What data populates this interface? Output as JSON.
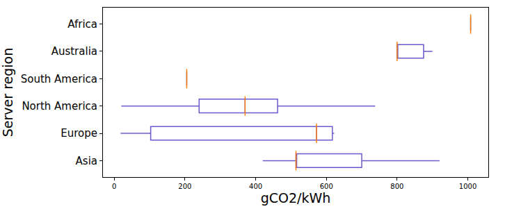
{
  "chart_data": {
    "type": "box",
    "orientation": "horizontal",
    "x_label": "gCO2/kWh",
    "y_label": "Server region",
    "categories": [
      "Asia",
      "Europe",
      "North America",
      "South America",
      "Australia",
      "Africa"
    ],
    "min": [
      420,
      18,
      20,
      205,
      800,
      1008
    ],
    "q1": [
      514,
      103,
      240,
      205,
      800,
      1008
    ],
    "median": [
      514,
      572,
      370,
      205,
      800,
      1008
    ],
    "q3": [
      700,
      617,
      462,
      205,
      875,
      1008
    ],
    "max": [
      920,
      622,
      738,
      205,
      900,
      1008
    ],
    "color": "#6a5acd",
    "xlim": [
      -32,
      1058
    ],
    "xticks": [
      0,
      200,
      400,
      600,
      800,
      1000
    ],
    "grid": false
  }
}
